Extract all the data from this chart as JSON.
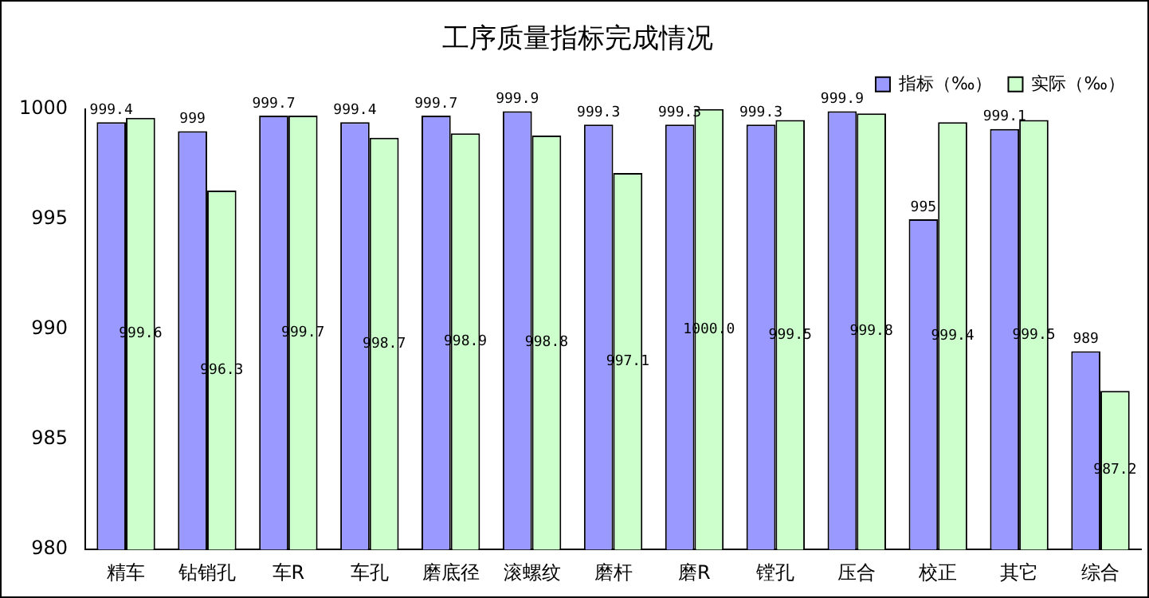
{
  "chart_data": {
    "type": "bar",
    "title": "工序质量指标完成情况",
    "categories": [
      "精车",
      "钻销孔",
      "车R",
      "车孔",
      "磨底径",
      "滚螺纹",
      "磨杆",
      "磨R",
      "镗孔",
      "压合",
      "校正",
      "其它",
      "综合"
    ],
    "series": [
      {
        "name": "指标（‰）",
        "color": "#9999ff",
        "values": [
          999.4,
          999,
          999.7,
          999.4,
          999.7,
          999.9,
          999.3,
          999.3,
          999.3,
          999.9,
          995,
          999.1,
          989
        ],
        "value_labels": [
          "999.4",
          "999",
          "999.7",
          "999.4",
          "999.7",
          "999.9",
          "999.3",
          "999.3",
          "999.3",
          "999.9",
          "995",
          "999.1",
          "989"
        ]
      },
      {
        "name": "实际（‰）",
        "color": "#ccffcc",
        "values": [
          999.6,
          996.3,
          999.7,
          998.7,
          998.9,
          998.8,
          997.1,
          1000.0,
          999.5,
          999.8,
          999.4,
          999.5,
          987.2
        ],
        "value_labels": [
          "999.6",
          "996.3",
          "999.7",
          "998.7",
          "998.9",
          "998.8",
          "997.1",
          "1000.0",
          "999.5",
          "999.8",
          "999.4",
          "999.5",
          "987.2"
        ]
      }
    ],
    "ylim": [
      980,
      1000
    ],
    "yticks": [
      980,
      985,
      990,
      995,
      1000
    ],
    "grid": false,
    "legend": "top right"
  }
}
